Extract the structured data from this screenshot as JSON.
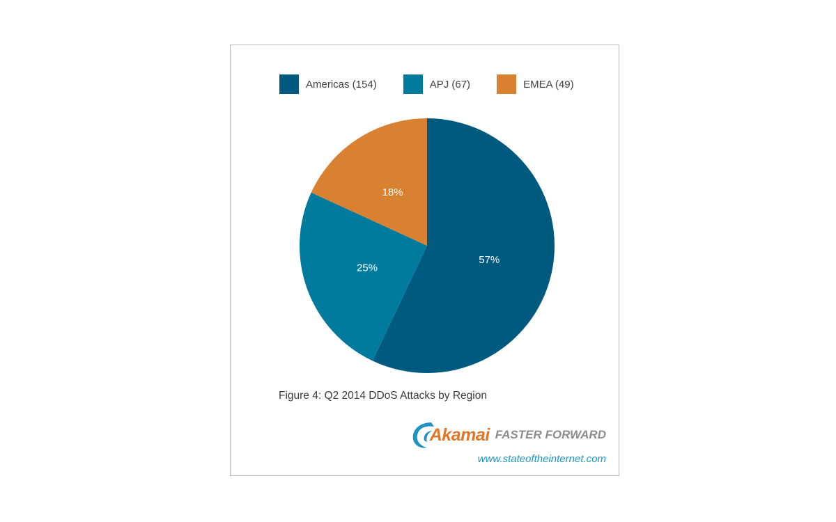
{
  "chart_data": {
    "type": "pie",
    "categories": [
      "Americas",
      "APJ",
      "EMEA"
    ],
    "values": [
      154,
      67,
      49
    ],
    "percent_labels": [
      "57%",
      "25%",
      "18%"
    ],
    "legend_labels": [
      "Americas (154)",
      "APJ (67)",
      "EMEA (49)"
    ],
    "colors": [
      "#005a80",
      "#007b9e",
      "#d88130"
    ],
    "legend_position": "top",
    "start_angle_deg": 0,
    "direction": "clockwise"
  },
  "caption": "Figure 4: Q2 2014 DDoS Attacks by Region",
  "branding": {
    "name": "Akamai",
    "tagline": "FASTER FORWARD",
    "url": "www.stateoftheinternet.com",
    "name_color": "#e0762a",
    "url_color": "#1f93c4",
    "icon": "akamai-wave-logo"
  }
}
